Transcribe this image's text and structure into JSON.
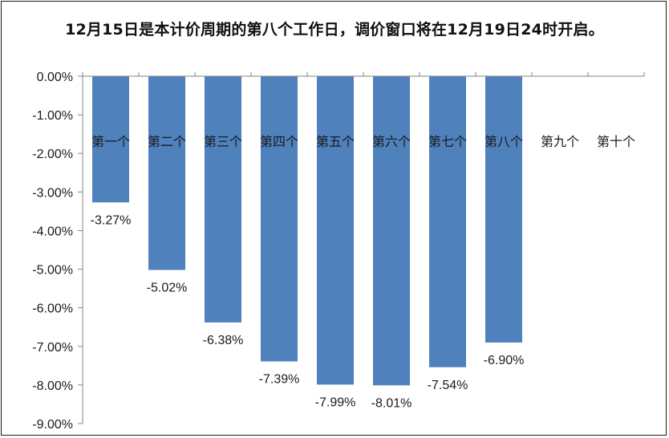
{
  "chart_data": {
    "type": "bar",
    "title": "12月15日是本计价周期的第八个工作日，调价窗口将在12月19日24时开启。",
    "categories": [
      "第一个",
      "第二个",
      "第三个",
      "第四个",
      "第五个",
      "第六个",
      "第七个",
      "第八个",
      "第九个",
      "第十个"
    ],
    "values": [
      -3.27,
      -5.02,
      -6.38,
      -7.39,
      -7.99,
      -8.01,
      -7.54,
      -6.9,
      null,
      null
    ],
    "data_labels": [
      "-3.27%",
      "-5.02%",
      "-6.38%",
      "-7.39%",
      "-7.99%",
      "-8.01%",
      "-7.54%",
      "-6.90%",
      "",
      ""
    ],
    "ylim": [
      -9,
      0
    ],
    "y_ticks": [
      0,
      -1,
      -2,
      -3,
      -4,
      -5,
      -6,
      -7,
      -8,
      -9
    ],
    "y_tick_labels": [
      "0.00%",
      "-1.00%",
      "-2.00%",
      "-3.00%",
      "-4.00%",
      "-5.00%",
      "-6.00%",
      "-7.00%",
      "-8.00%",
      "-9.00%"
    ],
    "bar_color": "#4f81bd",
    "grid": false,
    "legend": "none",
    "category_axis_position": "top"
  }
}
